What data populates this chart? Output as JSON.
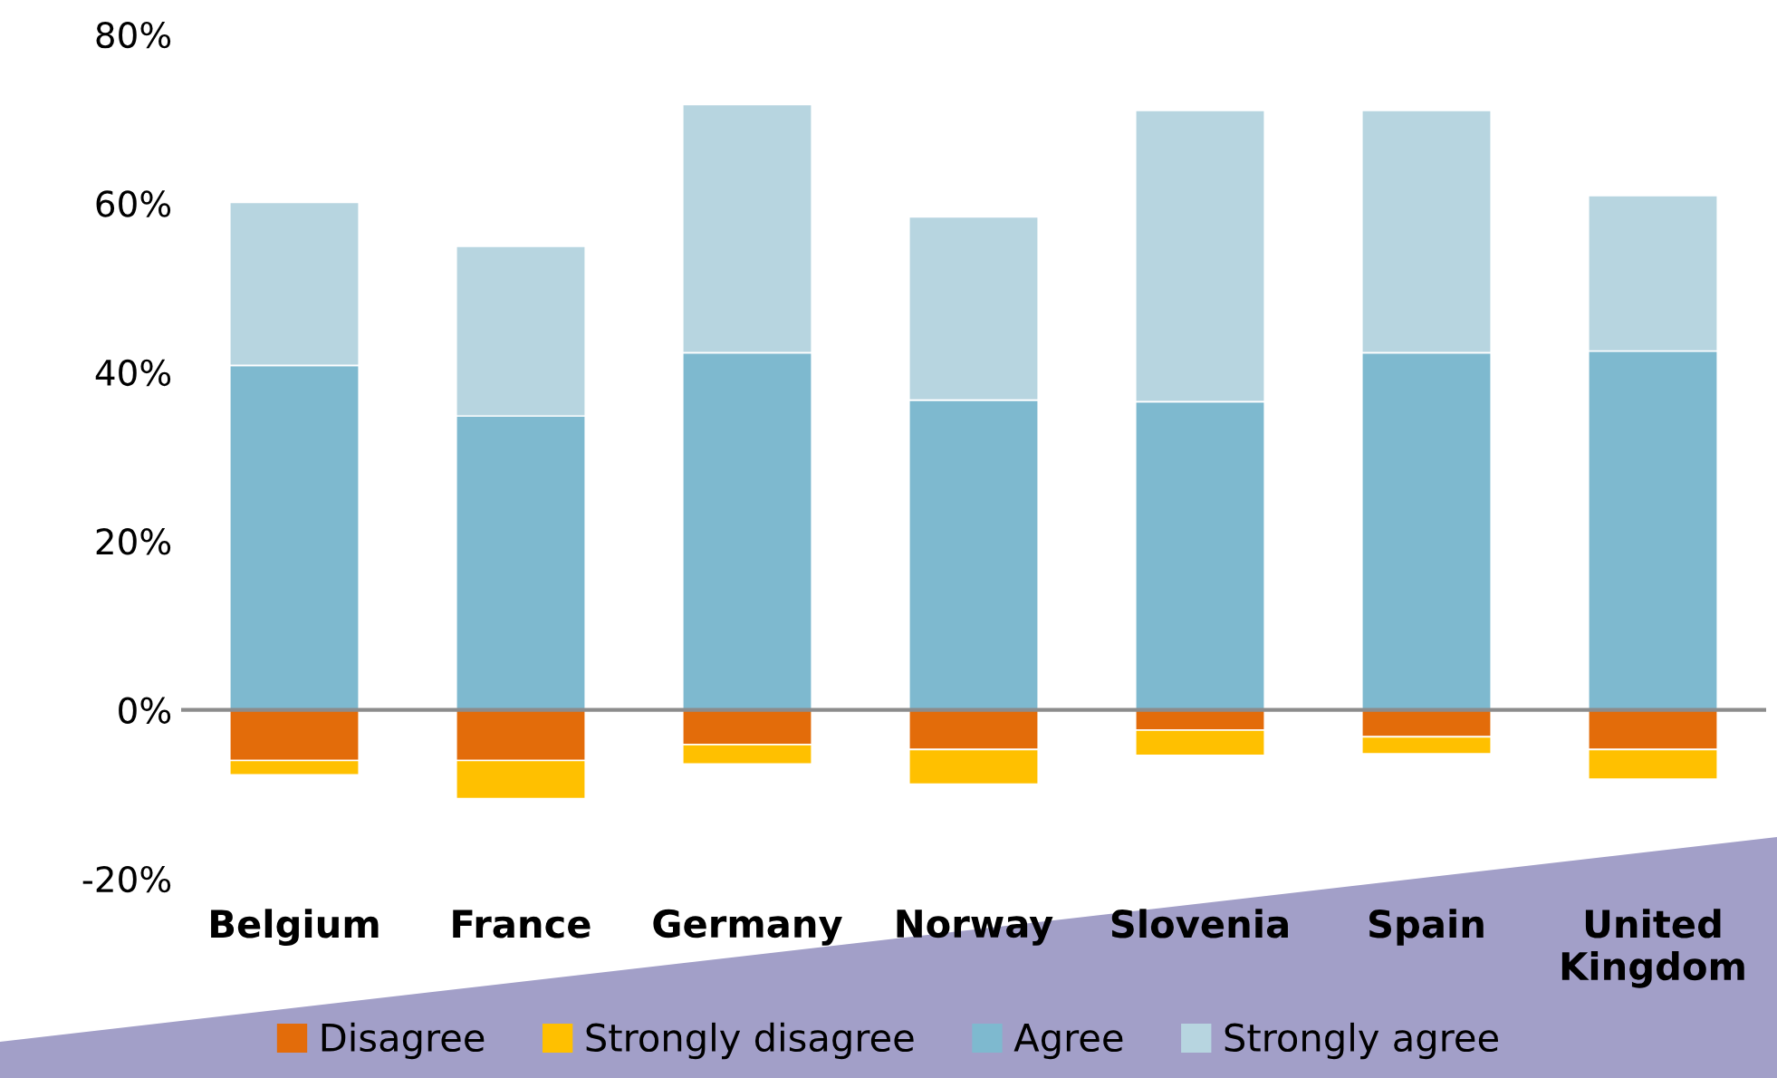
{
  "chart_data": {
    "type": "bar",
    "stacked": true,
    "categories": [
      "Belgium",
      "France",
      "Germany",
      "Norway",
      "Slovenia",
      "Spain",
      "United Kingdom"
    ],
    "series": [
      {
        "name": "Disagree",
        "color": "#e36c0a",
        "values": [
          -6.0,
          -6.0,
          -4.1,
          -4.7,
          -2.4,
          -3.2,
          -4.7
        ]
      },
      {
        "name": "Strongly disagree",
        "color": "#ffc000",
        "values": [
          -1.7,
          -4.5,
          -2.3,
          -4.1,
          -3.0,
          -2.0,
          -3.5
        ]
      },
      {
        "name": "Agree",
        "color": "#7eb9cf",
        "values": [
          40.8,
          34.8,
          42.3,
          36.7,
          36.5,
          42.3,
          42.5
        ]
      },
      {
        "name": "Strongly agree",
        "color": "#b7d5e0",
        "values": [
          19.3,
          20.1,
          29.4,
          21.7,
          34.5,
          28.7,
          18.4
        ]
      }
    ],
    "ylim": [
      -20,
      80
    ],
    "yticks": [
      {
        "value": -20,
        "label": "-20%"
      },
      {
        "value": 0,
        "label": "0%"
      },
      {
        "value": 20,
        "label": "20%"
      },
      {
        "value": 40,
        "label": "40%"
      },
      {
        "value": 60,
        "label": "60%"
      },
      {
        "value": 80,
        "label": "80%"
      }
    ],
    "legend": "bottom"
  }
}
